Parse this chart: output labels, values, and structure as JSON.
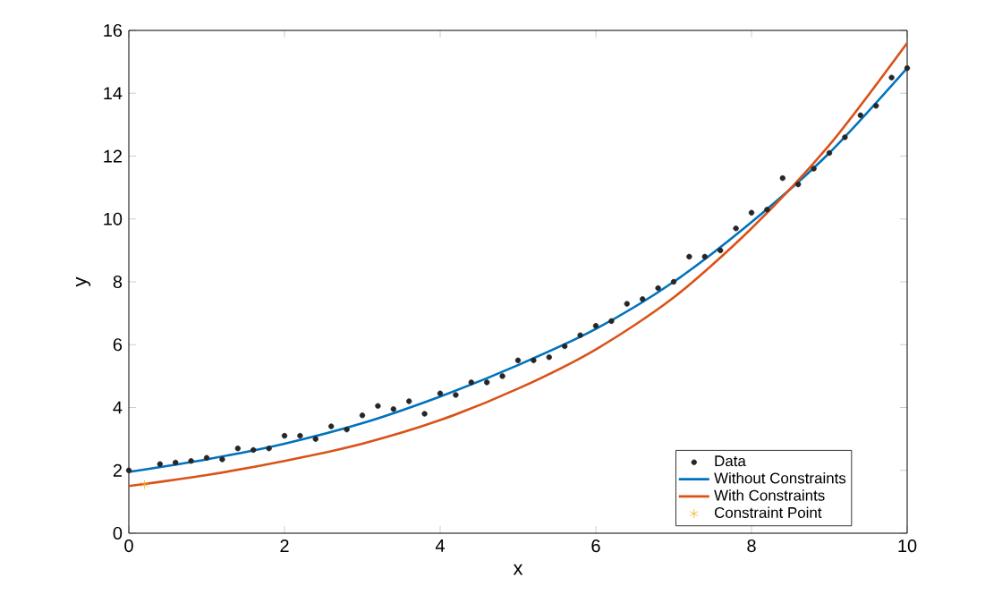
{
  "chart_data": {
    "type": "line",
    "xlabel": "x",
    "ylabel": "y",
    "xlim": [
      0,
      10
    ],
    "ylim": [
      0,
      16
    ],
    "xticks": [
      0,
      2,
      4,
      6,
      8,
      10
    ],
    "yticks": [
      0,
      2,
      4,
      6,
      8,
      10,
      12,
      14,
      16
    ],
    "legend": "bottom right",
    "grid": false,
    "series": [
      {
        "name": "Data",
        "type": "scatter",
        "marker": "circle",
        "color": "#262626",
        "x": [
          0,
          0.4,
          0.6,
          0.8,
          1.0,
          1.2,
          1.4,
          1.6,
          1.8,
          2.0,
          2.2,
          2.4,
          2.6,
          2.8,
          3.0,
          3.2,
          3.4,
          3.6,
          3.8,
          4.0,
          4.2,
          4.4,
          4.6,
          4.8,
          5.0,
          5.2,
          5.4,
          5.6,
          5.8,
          6.0,
          6.2,
          6.4,
          6.6,
          6.8,
          7.0,
          7.2,
          7.4,
          7.6,
          7.8,
          8.0,
          8.2,
          8.4,
          8.6,
          8.8,
          9.0,
          9.2,
          9.4,
          9.6,
          9.8,
          10.0
        ],
        "values": [
          2.0,
          2.2,
          2.25,
          2.3,
          2.4,
          2.35,
          2.7,
          2.65,
          2.7,
          3.1,
          3.1,
          3.0,
          3.4,
          3.3,
          3.75,
          4.05,
          3.95,
          4.2,
          3.8,
          4.45,
          4.4,
          4.8,
          4.8,
          5.0,
          5.5,
          5.5,
          5.6,
          5.95,
          6.3,
          6.6,
          6.75,
          7.3,
          7.45,
          7.8,
          8.0,
          8.8,
          8.8,
          9.0,
          9.7,
          10.2,
          10.3,
          11.3,
          11.1,
          11.6,
          12.1,
          12.6,
          13.3,
          13.6,
          14.5,
          14.8
        ]
      },
      {
        "name": "Without Constraints",
        "color": "#0072bd",
        "x": [
          0,
          1,
          2,
          3,
          4,
          5,
          6,
          7,
          8,
          9,
          10
        ],
        "values": [
          1.95,
          2.35,
          2.85,
          3.5,
          4.35,
          5.35,
          6.5,
          8.0,
          9.9,
          12.1,
          14.8
        ]
      },
      {
        "name": "With Constraints",
        "color": "#d95319",
        "x": [
          0,
          1,
          2,
          3,
          4,
          5,
          6,
          7,
          8,
          9,
          10
        ],
        "values": [
          1.5,
          1.85,
          2.3,
          2.85,
          3.6,
          4.6,
          5.85,
          7.5,
          9.7,
          12.35,
          15.6
        ]
      },
      {
        "name": "Constraint Point",
        "type": "scatter",
        "marker": "cross",
        "color": "#edb120",
        "x": [
          0.2
        ],
        "values": [
          1.55
        ]
      }
    ]
  }
}
